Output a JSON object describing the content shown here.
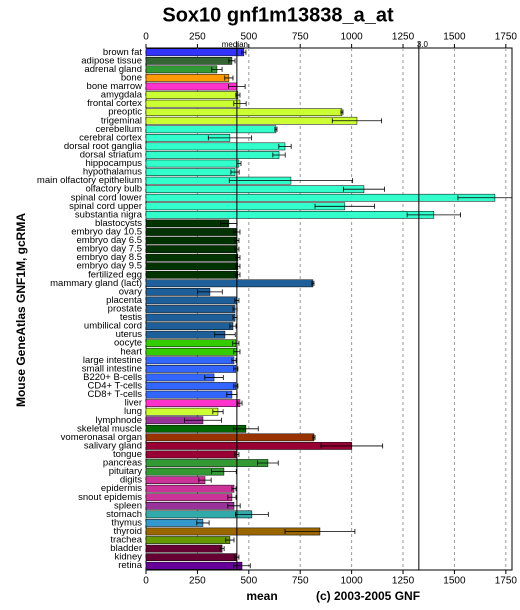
{
  "chart_data": {
    "type": "bar",
    "orientation": "horizontal",
    "title": "Sox10 gnf1m13838_a_at",
    "ylabel": "Mouse GeneAtlas GNF1M, gcRMA",
    "xlabel": "mean",
    "credit": "(c) 2003-2005 GNF",
    "categories": [
      "brown fat",
      "adipose tissue",
      "adrenal gland",
      "bone",
      "bone marrow",
      "amygdala",
      "frontal cortex",
      "preoptic",
      "trigeminal",
      "cerebellum",
      "cerebral cortex",
      "dorsal root ganglia",
      "dorsal striatum",
      "hippocampus",
      "hypothalamus",
      "main olfactory epithelium",
      "olfactory bulb",
      "spinal cord lower",
      "spinal cord upper",
      "substantia nigra",
      "blastocysts",
      "embryo day 10.5",
      "embryo day 6.5",
      "embryo day 7.5",
      "embryo day 8.5",
      "embryo day 9.5",
      "fertilized egg",
      "mammary gland (lact)",
      "ovary",
      "placenta",
      "prostate",
      "testis",
      "umbilical cord",
      "uterus",
      "oocyte",
      "heart",
      "large intestine",
      "small intestine",
      "B220+ B-cells",
      "CD4+ T-cells",
      "CD8+ T-cells",
      "liver",
      "lung",
      "lymphnode",
      "skeletal muscle",
      "vomeronasal organ",
      "salivary gland",
      "tongue",
      "pancreas",
      "pituitary",
      "digits",
      "epidermis",
      "snout epidemis",
      "spleen",
      "stomach",
      "thymus",
      "thyroid",
      "trachea",
      "bladder",
      "kidney",
      "retina"
    ],
    "values": [
      476,
      418,
      345,
      403,
      442,
      447,
      457,
      953,
      1026,
      632,
      408,
      676,
      647,
      452,
      433,
      705,
      1060,
      1697,
      967,
      1400,
      403,
      442,
      442,
      442,
      447,
      447,
      447,
      812,
      311,
      442,
      433,
      433,
      423,
      384,
      437,
      442,
      428,
      437,
      331,
      437,
      418,
      457,
      350,
      277,
      486,
      817,
      1001,
      442,
      593,
      379,
      287,
      428,
      418,
      428,
      515,
      277,
      846,
      408,
      370,
      442,
      467
    ],
    "errors": [
      10,
      15,
      25,
      20,
      40,
      10,
      30,
      5,
      120,
      5,
      105,
      30,
      30,
      10,
      20,
      300,
      100,
      180,
      145,
      130,
      40,
      15,
      10,
      10,
      10,
      10,
      10,
      5,
      60,
      10,
      10,
      10,
      15,
      50,
      15,
      15,
      10,
      10,
      45,
      10,
      25,
      10,
      25,
      90,
      60,
      5,
      150,
      10,
      50,
      60,
      30,
      10,
      20,
      30,
      80,
      30,
      170,
      20,
      10,
      10,
      40
    ],
    "colors": [
      "#3333ff",
      "#336633",
      "#339933",
      "#ff9900",
      "#ff33cc",
      "#ccff33",
      "#ccff33",
      "#ccff33",
      "#ccff33",
      "#33ffcc",
      "#33ffcc",
      "#33ffcc",
      "#33ffcc",
      "#33ffcc",
      "#33ffcc",
      "#33ffcc",
      "#33ffcc",
      "#33ffcc",
      "#33ffcc",
      "#33ffcc",
      "#003300",
      "#003300",
      "#003300",
      "#003300",
      "#003300",
      "#003300",
      "#003300",
      "#1f5f99",
      "#1f5f99",
      "#1f5f99",
      "#1f5f99",
      "#1f5f99",
      "#1f5f99",
      "#1f5f99",
      "#33cc00",
      "#33cc00",
      "#3366ff",
      "#3366ff",
      "#3366ff",
      "#3366ff",
      "#3366ff",
      "#ff33cc",
      "#ccff33",
      "#993399",
      "#006600",
      "#993300",
      "#990033",
      "#990033",
      "#339933",
      "#339933",
      "#cc3399",
      "#cc3399",
      "#cc3399",
      "#993399",
      "#33aaaa",
      "#3399cc",
      "#996600",
      "#669900",
      "#660033",
      "#660033",
      "#660099"
    ],
    "xlim": [
      0,
      1780
    ],
    "xticks": [
      0,
      250,
      500,
      750,
      1000,
      1250,
      1500,
      1750
    ],
    "grid": true,
    "reference_lines": [
      {
        "label": "median",
        "value": 442
      },
      {
        "label": "3.0",
        "value": 1327
      }
    ]
  }
}
